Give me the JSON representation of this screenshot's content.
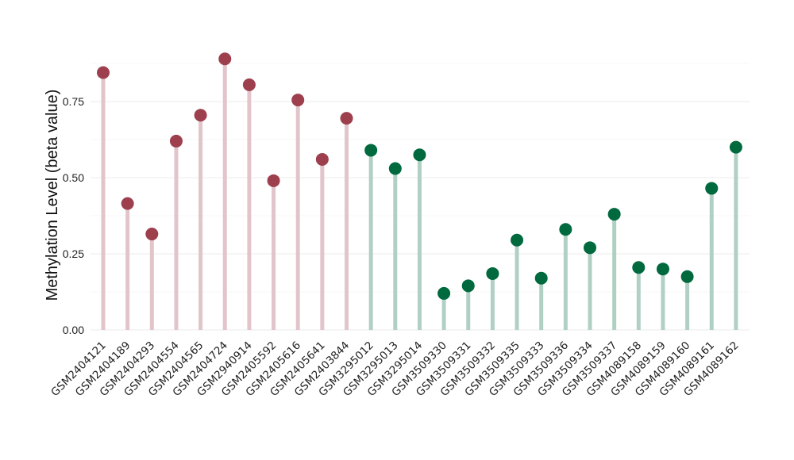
{
  "chart_data": {
    "type": "lollipop",
    "ylabel": "Methylation Level (beta value)",
    "yticks": [
      "0.00",
      "0.25",
      "0.50",
      "0.75"
    ],
    "ylim": [
      0,
      0.9
    ],
    "grid": true,
    "categories": [
      "GSM2404121",
      "GSM2404189",
      "GSM2404293",
      "GSM2404554",
      "GSM2404565",
      "GSM2404724",
      "GSM2940914",
      "GSM2405592",
      "GSM2405616",
      "GSM2405641",
      "GSM2403844",
      "GSM3295012",
      "GSM3295013",
      "GSM3295014",
      "GSM3509330",
      "GSM3509331",
      "GSM3509332",
      "GSM3509335",
      "GSM3509333",
      "GSM3509336",
      "GSM3509334",
      "GSM3509337",
      "GSM4089158",
      "GSM4089159",
      "GSM4089160",
      "GSM4089161",
      "GSM4089162"
    ],
    "values": [
      0.845,
      0.415,
      0.315,
      0.62,
      0.705,
      0.89,
      0.805,
      0.49,
      0.755,
      0.56,
      0.695,
      0.59,
      0.53,
      0.575,
      0.12,
      0.145,
      0.185,
      0.295,
      0.17,
      0.33,
      0.27,
      0.38,
      0.205,
      0.2,
      0.175,
      0.465,
      0.6
    ],
    "groups": [
      "a",
      "a",
      "a",
      "a",
      "a",
      "a",
      "a",
      "a",
      "a",
      "a",
      "a",
      "b",
      "b",
      "b",
      "b",
      "b",
      "b",
      "b",
      "b",
      "b",
      "b",
      "b",
      "b",
      "b",
      "b",
      "b",
      "b"
    ],
    "colors": {
      "a": {
        "dot": "#9e3f4e",
        "stem": "#e2c4cb"
      },
      "b": {
        "dot": "#00693e",
        "stem": "#b1d0c4"
      }
    }
  }
}
